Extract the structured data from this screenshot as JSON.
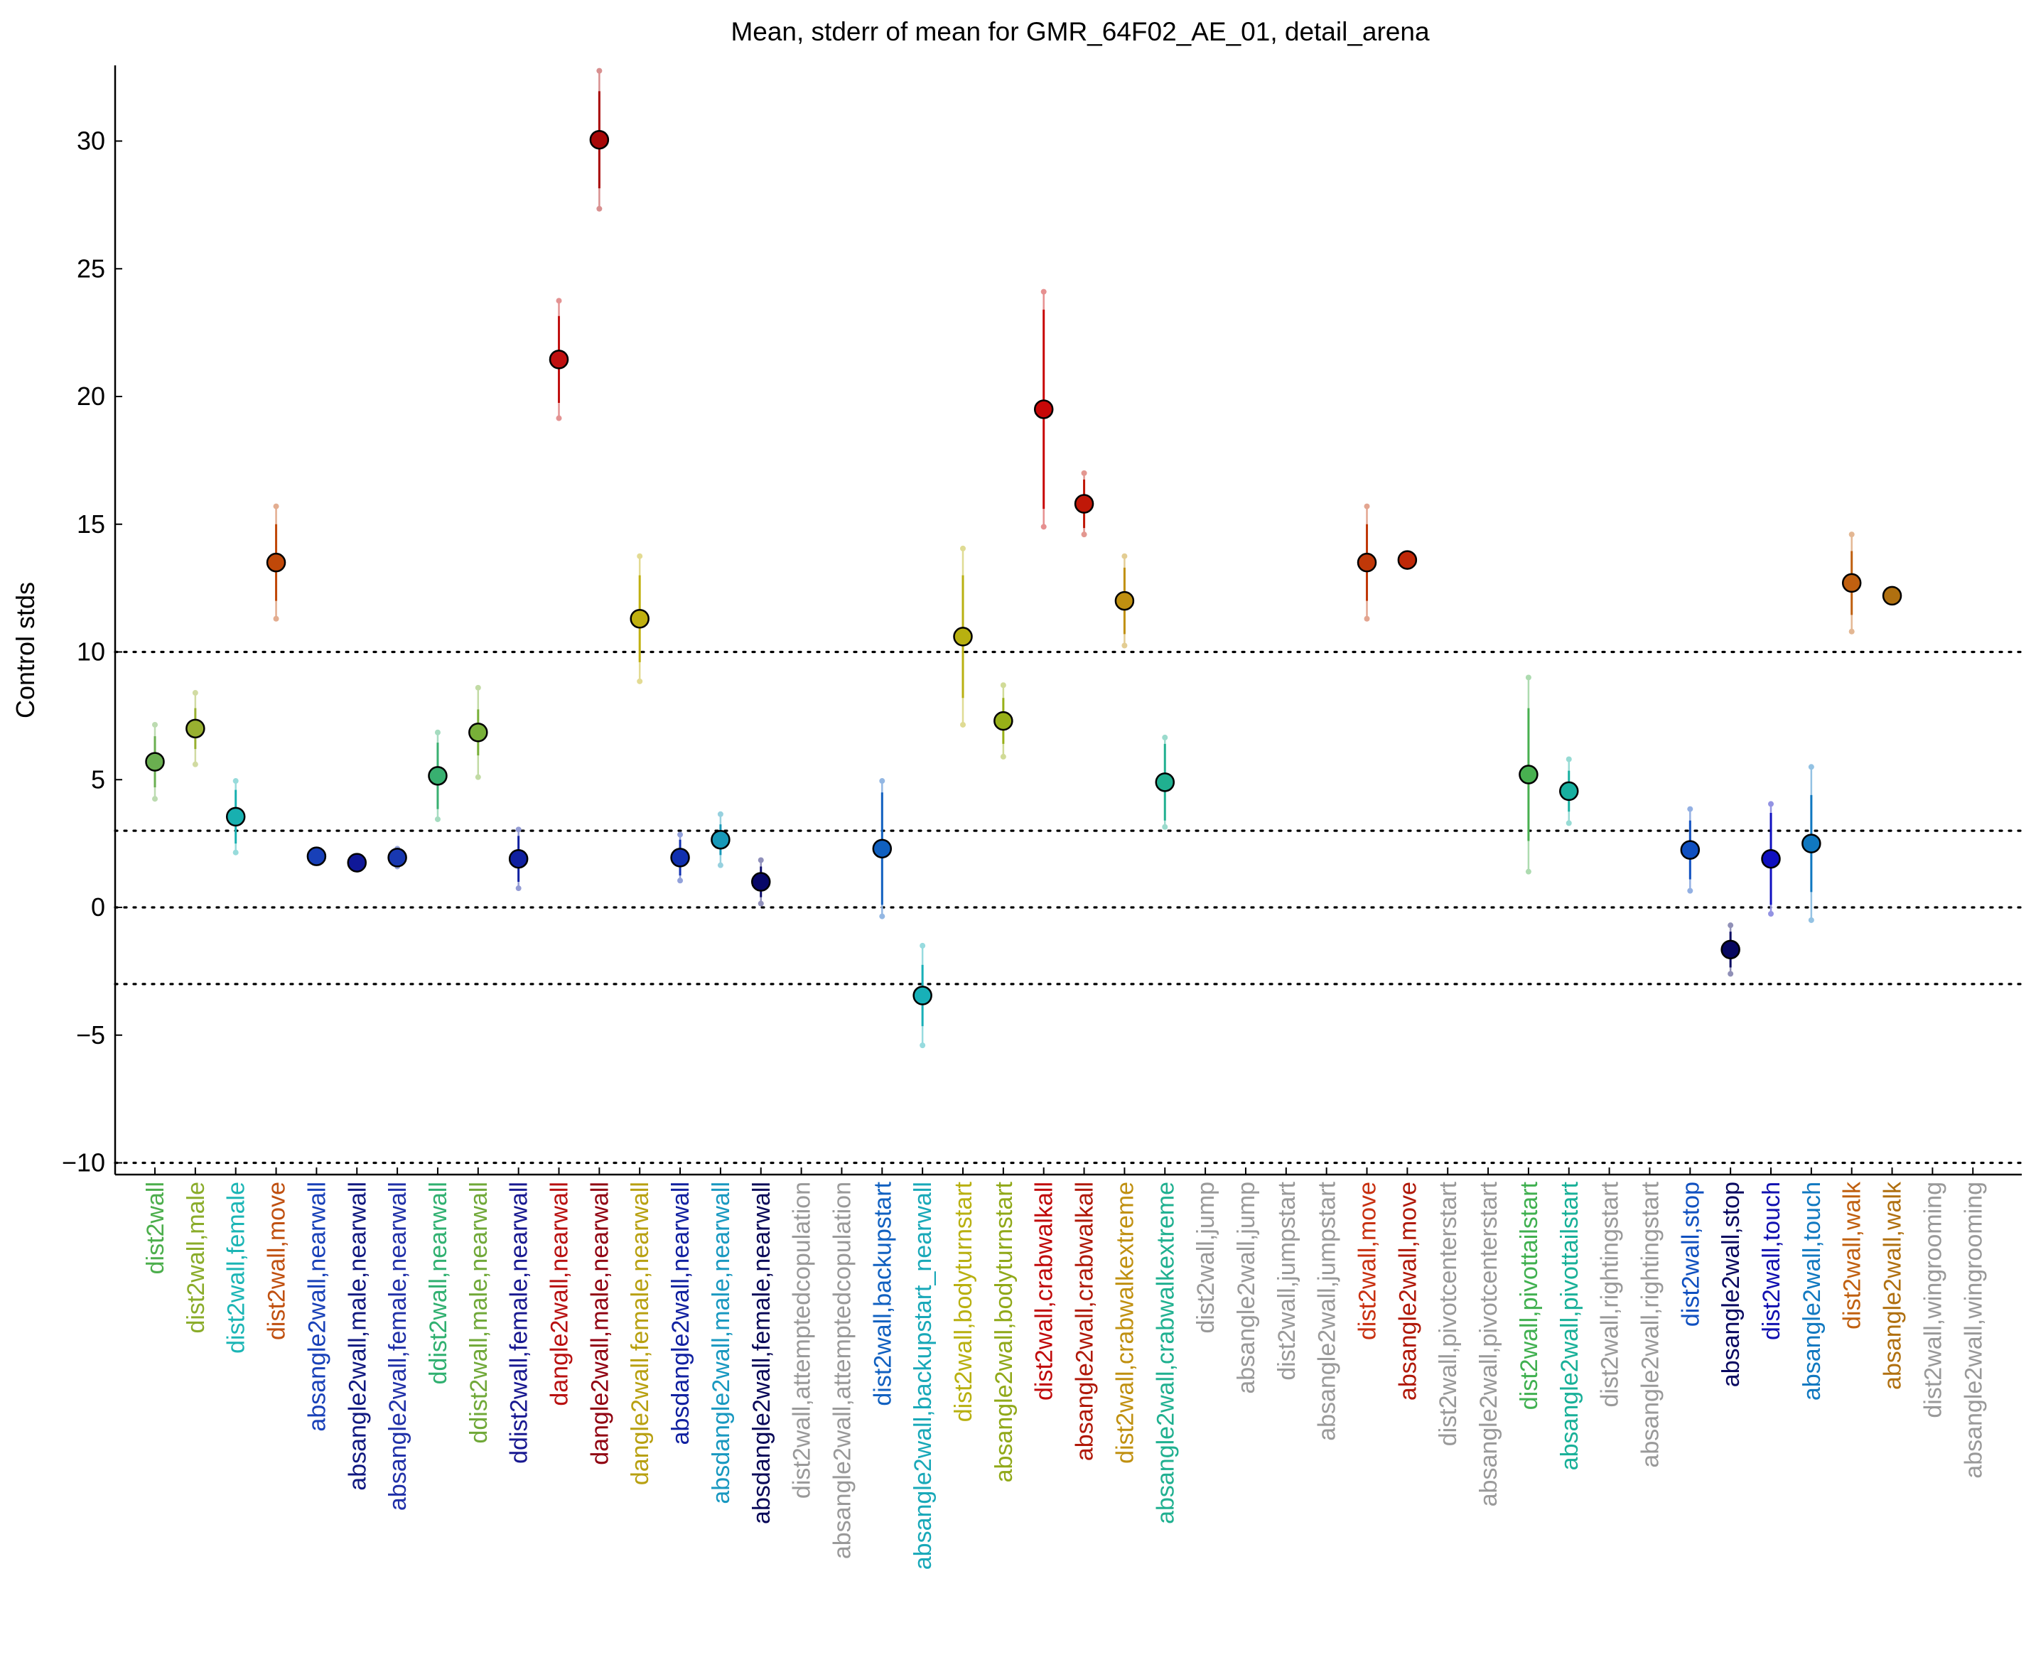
{
  "chart_data": {
    "type": "scatter",
    "title": "Mean, stderr of mean for GMR_64F02_AE_01, detail_arena",
    "ylabel": "Control stds",
    "xlabel": "",
    "ylim": [
      -10.5,
      33
    ],
    "yticks": [
      30,
      25,
      20,
      15,
      10,
      5,
      0,
      -5,
      -10
    ],
    "reference_lines": [
      10,
      3,
      0,
      -3,
      -10
    ],
    "grid": false,
    "categories": [
      "dist2wall",
      "dist2wall,male",
      "dist2wall,female",
      "dist2wall,move",
      "absangle2wall,nearwall",
      "absangle2wall,male,nearwall",
      "absangle2wall,female,nearwall",
      "ddist2wall,nearwall",
      "ddist2wall,male,nearwall",
      "ddist2wall,female,nearwall",
      "dangle2wall,nearwall",
      "dangle2wall,male,nearwall",
      "dangle2wall,female,nearwall",
      "absdangle2wall,nearwall",
      "absdangle2wall,male,nearwall",
      "absdangle2wall,female,nearwall",
      "dist2wall,attemptedcopulation",
      "absangle2wall,attemptedcopulation",
      "dist2wall,backupstart",
      "absangle2wall,backupstart_nearwall",
      "dist2wall,bodyturnstart",
      "absangle2wall,bodyturnstart",
      "dist2wall,crabwalkall",
      "absangle2wall,crabwalkall",
      "dist2wall,crabwalkextreme",
      "absangle2wall,crabwalkextreme",
      "dist2wall,jump",
      "absangle2wall,jump",
      "dist2wall,jumpstart",
      "absangle2wall,jumpstart",
      "dist2wall,move",
      "absangle2wall,move",
      "dist2wall,pivotcenterstart",
      "absangle2wall,pivotcenterstart",
      "dist2wall,pivottailstart",
      "absangle2wall,pivottailstart",
      "dist2wall,rightingstart",
      "absangle2wall,rightingstart",
      "dist2wall,stop",
      "absangle2wall,stop",
      "dist2wall,touch",
      "absangle2wall,touch",
      "dist2wall,walk",
      "absangle2wall,walk",
      "dist2wall,wingrooming",
      "absangle2wall,wingrooming"
    ],
    "label_colors": [
      "#4cae4c",
      "#8aac2a",
      "#1bb5b5",
      "#c05010",
      "#1840b8",
      "#101880",
      "#2030a8",
      "#30b070",
      "#70a838",
      "#181890",
      "#b81010",
      "#900010",
      "#b8a010",
      "#1020a0",
      "#1898c0",
      "#080858",
      "#999999",
      "#999999",
      "#1060c0",
      "#18a8b8",
      "#b8b010",
      "#90a818",
      "#c00808",
      "#b01808",
      "#c09010",
      "#20b090",
      "#999999",
      "#999999",
      "#999999",
      "#999999",
      "#c83010",
      "#b01808",
      "#999999",
      "#999999",
      "#40b050",
      "#18b098",
      "#999999",
      "#999999",
      "#1050c0",
      "#080860",
      "#1010b0",
      "#1078c0",
      "#c06010",
      "#b07010",
      "#999999",
      "#999999"
    ],
    "series": [
      {
        "values": [
          5.7,
          7.0,
          3.55,
          13.5,
          2.0,
          1.75,
          1.95,
          5.15,
          6.85,
          1.9,
          21.45,
          30.05,
          11.3,
          1.95,
          2.65,
          1.0,
          null,
          null,
          2.3,
          -3.45,
          10.6,
          7.3,
          19.5,
          15.8,
          12.0,
          4.9,
          null,
          null,
          null,
          null,
          13.5,
          13.6,
          null,
          null,
          5.2,
          4.55,
          null,
          null,
          2.25,
          -1.65,
          1.9,
          2.5,
          12.7,
          12.2,
          null,
          null
        ],
        "err_inner": [
          1.0,
          0.8,
          1.05,
          1.5,
          0.15,
          0.15,
          0.2,
          1.3,
          0.9,
          0.9,
          1.7,
          1.9,
          1.7,
          0.7,
          0.6,
          0.6,
          null,
          null,
          2.2,
          1.2,
          2.4,
          0.9,
          3.9,
          0.95,
          1.3,
          1.5,
          null,
          null,
          null,
          null,
          1.5,
          0.15,
          null,
          null,
          2.6,
          0.8,
          null,
          null,
          1.15,
          0.7,
          1.8,
          1.9,
          1.25,
          0.1,
          null,
          null
        ],
        "err_outer": [
          1.45,
          1.4,
          1.4,
          2.2,
          0.25,
          0.25,
          0.35,
          1.7,
          1.75,
          1.15,
          2.3,
          2.7,
          2.45,
          0.9,
          1.0,
          0.85,
          null,
          null,
          2.65,
          1.95,
          3.45,
          1.4,
          4.6,
          1.2,
          1.75,
          1.75,
          null,
          null,
          null,
          null,
          2.2,
          0.2,
          null,
          null,
          3.8,
          1.25,
          null,
          null,
          1.6,
          0.95,
          2.15,
          3.0,
          1.9,
          0.15,
          null,
          null
        ],
        "point_colors": [
          "#6aaf50",
          "#98b030",
          "#18b0b0",
          "#c04808",
          "#1840b8",
          "#101898",
          "#1838b0",
          "#38b070",
          "#78b038",
          "#1020a0",
          "#c01010",
          "#a80808",
          "#c0b010",
          "#1030b0",
          "#1898b8",
          "#080868",
          null,
          null,
          "#1060c0",
          "#18b0b8",
          "#b8b010",
          "#98b018",
          "#c80808",
          "#c01808",
          "#c09010",
          "#20b090",
          null,
          null,
          null,
          null,
          "#c03808",
          "#c02808",
          null,
          null,
          "#48b050",
          "#18b0a0",
          null,
          null,
          "#1050c0",
          "#080860",
          "#1010c0",
          "#1078c0",
          "#c06010",
          "#b07010",
          null,
          null
        ]
      }
    ]
  }
}
